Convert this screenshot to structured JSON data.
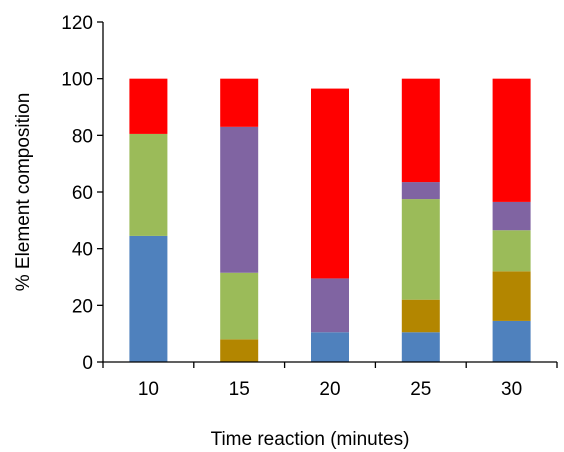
{
  "chart_data": {
    "type": "bar",
    "stacked": true,
    "title": "",
    "xlabel": "Time reaction (minutes)",
    "ylabel": "% Element composition",
    "ylim": [
      0,
      120
    ],
    "yticks": [
      0,
      20,
      40,
      60,
      80,
      100,
      120
    ],
    "categories": [
      "10",
      "15",
      "20",
      "25",
      "30"
    ],
    "grid": false,
    "legend": "none",
    "series": [
      {
        "color": "#4F81BD",
        "values": [
          44.5,
          0,
          10.5,
          10.5,
          14.5
        ]
      },
      {
        "color": "#B38600",
        "values": [
          0,
          8,
          0,
          11.5,
          17.5
        ]
      },
      {
        "color": "#9BBB59",
        "values": [
          36,
          23.5,
          0,
          35.5,
          14.5
        ]
      },
      {
        "color": "#8064A2",
        "values": [
          0,
          51.5,
          19,
          6,
          10
        ]
      },
      {
        "color": "#FF0000",
        "values": [
          19.5,
          17,
          67,
          36.5,
          43.5
        ]
      }
    ]
  }
}
